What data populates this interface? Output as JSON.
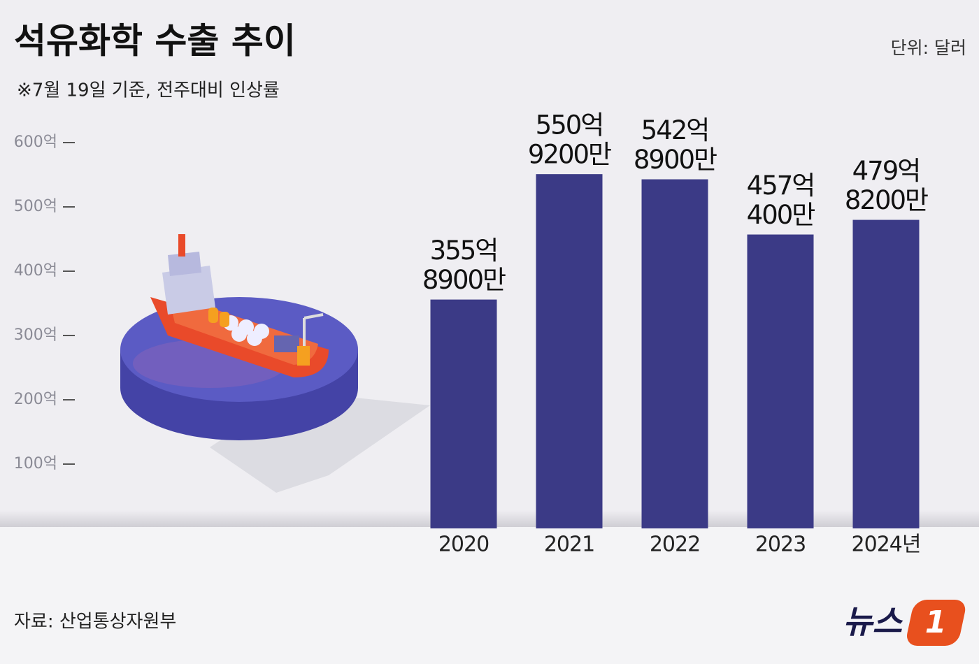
{
  "chart_data": {
    "type": "bar",
    "title": "석유화학 수출 추이",
    "subtitle": "※7월 19일 기준, 전주대비 인상률",
    "unit": "단위: 달러",
    "source": "자료: 산업통상자원부",
    "logo": [
      "뉴스",
      "1"
    ],
    "categories": [
      "2020",
      "2021",
      "2022",
      "2023",
      "2024년"
    ],
    "values": [
      355.89,
      550.92,
      542.89,
      457.04,
      479.82
    ],
    "value_labels": [
      [
        "355억",
        "8900만"
      ],
      [
        "550억",
        "9200만"
      ],
      [
        "542억",
        "8900만"
      ],
      [
        "457억",
        "400만"
      ],
      [
        "479억",
        "8200만"
      ]
    ],
    "color": "#3b3a86",
    "ylim": [
      0,
      600
    ],
    "yticks": [
      {
        "value": 100,
        "label": "100억"
      },
      {
        "value": 200,
        "label": "200억"
      },
      {
        "value": 300,
        "label": "300억"
      },
      {
        "value": 400,
        "label": "400억"
      },
      {
        "value": 500,
        "label": "500억"
      },
      {
        "value": 600,
        "label": "600억"
      }
    ]
  }
}
